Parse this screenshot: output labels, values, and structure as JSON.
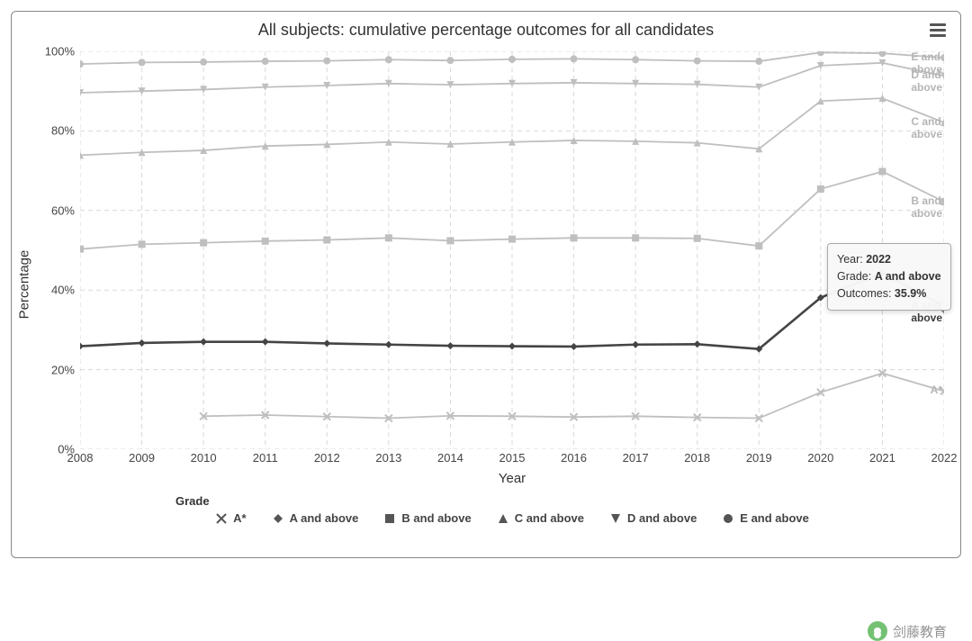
{
  "chart": {
    "title": "All subjects: cumulative percentage outcomes for all candidates",
    "type": "line",
    "xlabel": "Year",
    "ylabel": "Percentage",
    "xlim": [
      2008,
      2022
    ],
    "ylim": [
      0,
      100
    ],
    "ytick_step": 20,
    "ytick_suffix": "%",
    "years": [
      2008,
      2009,
      2010,
      2011,
      2012,
      2013,
      2014,
      2015,
      2016,
      2017,
      2018,
      2019,
      2020,
      2021,
      2022
    ],
    "grid_color": "#d9d9d9",
    "axis_color": "#d9d9d9",
    "background_color": "#ffffff",
    "tick_font_size": 13,
    "label_font_size": 15,
    "title_font_size": 18,
    "line_width_default": 1.8,
    "line_width_emphasis": 2.6,
    "muted_color": "#bfbfbf",
    "emphasis_color": "#444444",
    "label_muted_color": "#b5b5b5",
    "label_emphasis_color": "#3a3a3a",
    "series": [
      {
        "id": "a_star",
        "label": "A*",
        "marker": "cross",
        "emphasis": false,
        "values": [
          null,
          null,
          8.3,
          8.6,
          8.2,
          7.8,
          8.4,
          8.3,
          8.1,
          8.3,
          8.0,
          7.8,
          14.3,
          19.1,
          14.6
        ]
      },
      {
        "id": "a_above",
        "label": "A and above",
        "marker": "diamond",
        "emphasis": true,
        "values": [
          25.9,
          26.7,
          27.0,
          27.0,
          26.6,
          26.3,
          26.0,
          25.9,
          25.8,
          26.3,
          26.4,
          25.2,
          38.1,
          44.3,
          35.9
        ]
      },
      {
        "id": "b_above",
        "label": "B and above",
        "marker": "square",
        "emphasis": false,
        "values": [
          50.3,
          51.5,
          51.9,
          52.3,
          52.6,
          53.1,
          52.4,
          52.8,
          53.1,
          53.1,
          53.0,
          51.1,
          65.4,
          69.8,
          62.2
        ]
      },
      {
        "id": "c_above",
        "label": "C and above",
        "marker": "triangle",
        "emphasis": false,
        "values": [
          73.9,
          74.6,
          75.1,
          76.2,
          76.6,
          77.2,
          76.7,
          77.2,
          77.6,
          77.4,
          77.0,
          75.5,
          87.5,
          88.2,
          82.1
        ]
      },
      {
        "id": "d_above",
        "label": "D and above",
        "marker": "down-triangle",
        "emphasis": false,
        "values": [
          89.6,
          90.0,
          90.4,
          91.0,
          91.4,
          91.9,
          91.6,
          91.9,
          92.1,
          91.9,
          91.7,
          91.0,
          96.4,
          97.1,
          93.8
        ]
      },
      {
        "id": "e_above",
        "label": "E and above",
        "marker": "circle",
        "emphasis": false,
        "values": [
          96.8,
          97.2,
          97.3,
          97.5,
          97.6,
          97.9,
          97.7,
          98.0,
          98.1,
          97.9,
          97.6,
          97.5,
          99.7,
          99.5,
          98.4
        ]
      }
    ],
    "tooltip": {
      "year_label_prefix": "Year: ",
      "year": "2022",
      "grade_label_prefix": "Grade: ",
      "grade": "A and above",
      "value_label_prefix": "Outcomes: ",
      "value": "35.9%"
    },
    "legend": {
      "title": "Grade"
    },
    "menu_icon": "hamburger-icon"
  },
  "watermark": {
    "text": "剑藤教育"
  }
}
